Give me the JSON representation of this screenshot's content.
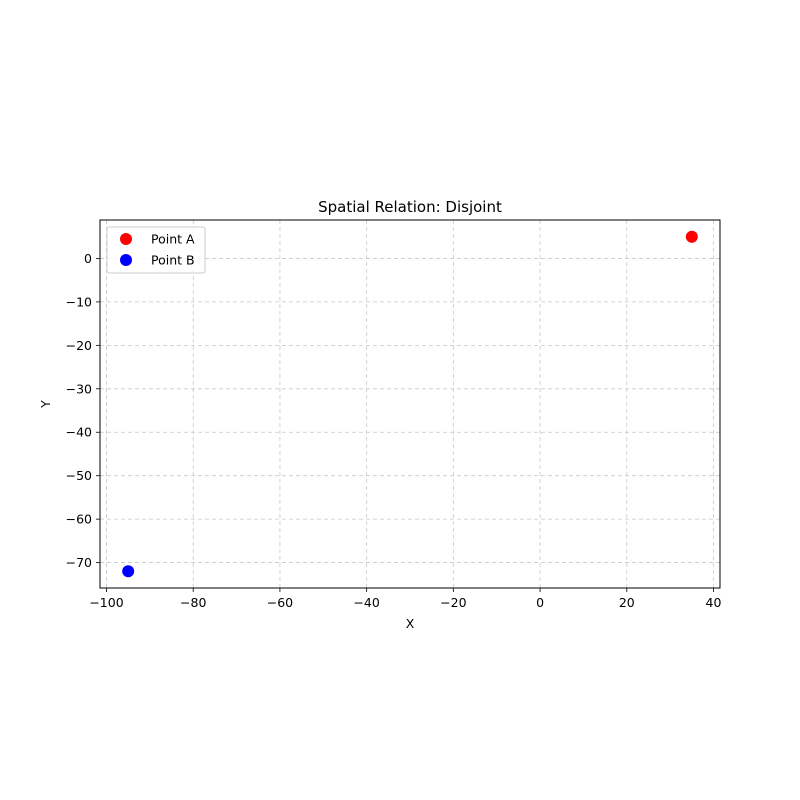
{
  "chart_data": {
    "type": "scatter",
    "title": "Spatial Relation: Disjoint",
    "xlabel": "X",
    "ylabel": "Y",
    "xlim": [
      -101.5,
      41.5
    ],
    "ylim": [
      -75.85,
      8.85
    ],
    "xticks": [
      -100,
      -80,
      -60,
      -40,
      -20,
      0,
      20,
      40
    ],
    "yticks": [
      0,
      -10,
      -20,
      -30,
      -40,
      -50,
      -60,
      -70
    ],
    "grid": true,
    "legend_position": "top-left",
    "series": [
      {
        "name": "Point A",
        "color": "#ff0000",
        "points": [
          {
            "x": 35,
            "y": 5
          }
        ]
      },
      {
        "name": "Point B",
        "color": "#0000ff",
        "points": [
          {
            "x": -95,
            "y": -72
          }
        ]
      }
    ]
  }
}
